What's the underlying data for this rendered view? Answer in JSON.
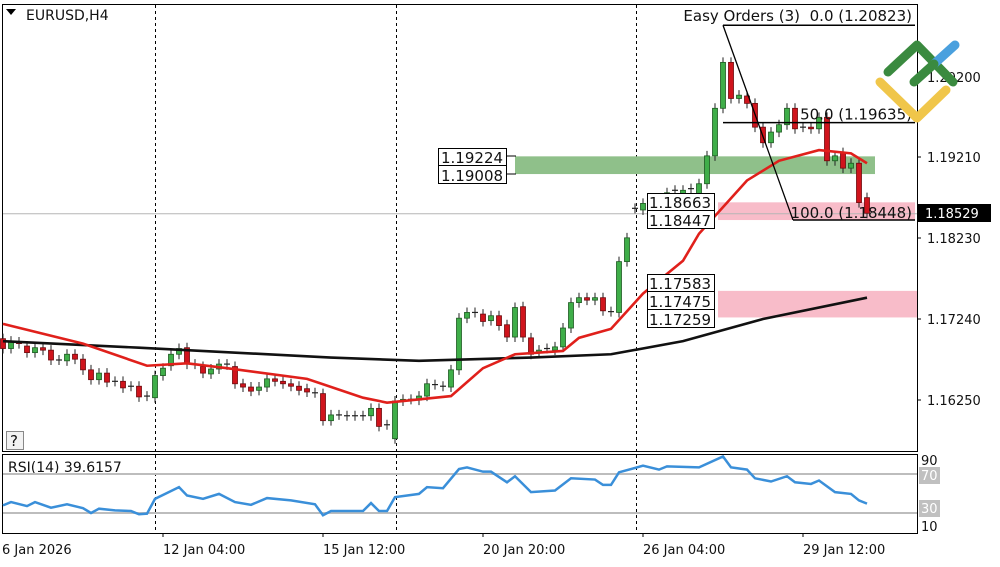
{
  "header": {
    "symbol": "EURUSD,H4",
    "menu_icon": "triangle-down-icon"
  },
  "help_button": "?",
  "indicator_label": "Easy Orders (3)",
  "price_axis": {
    "labels": [
      "1.20200",
      "1.19210",
      "1.18230",
      "1.17240",
      "1.16250"
    ],
    "current_price": "1.18529"
  },
  "zones": {
    "resistance": {
      "labels": [
        "1.19224",
        "1.19008"
      ],
      "color": "#8fc08a"
    },
    "support_upper": {
      "labels": [
        "1.18663",
        "1.18447"
      ],
      "color": "#f8bcc9"
    },
    "support_lower": {
      "labels": [
        "1.17583",
        "1.17475",
        "1.17259"
      ],
      "color": "#f8bcc9"
    }
  },
  "fibonacci": {
    "levels": [
      {
        "label": "0.0 (1.20823)",
        "price": 1.20823
      },
      {
        "label": "50.0 (1.19635)",
        "price": 1.19635
      },
      {
        "label": "100.0 (1.18448)",
        "price": 1.18448
      }
    ]
  },
  "rsi": {
    "label": "RSI(14) 39.6157",
    "levels": [
      "90",
      "70",
      "30",
      "10"
    ],
    "color": "#3a8fd9"
  },
  "time_axis": {
    "labels": [
      "6 Jan 2026",
      "12 Jan 04:00",
      "15 Jan 12:00",
      "20 Jan 20:00",
      "26 Jan 04:00",
      "29 Jan 12:00"
    ]
  },
  "logo": {
    "colors": [
      "#3a8a3f",
      "#4aa0de",
      "#f0c64a"
    ]
  },
  "chart_data": {
    "type": "candlestick",
    "symbol": "EURUSD",
    "timeframe": "H4",
    "ylim": [
      1.1563,
      1.2107
    ],
    "colors": {
      "up": "#3fae49",
      "down": "#d0141c",
      "ma_fast": "#e0201b",
      "ma_slow": "#111111"
    },
    "open": [
      1.17,
      1.1688,
      1.1696,
      1.1691,
      1.1683,
      1.1689,
      1.1686,
      1.1674,
      1.1673,
      1.1681,
      1.1675,
      1.1662,
      1.165,
      1.1658,
      1.1648,
      1.1648,
      1.1642,
      1.1642,
      1.163,
      1.1628,
      1.1655,
      1.1667,
      1.1681,
      1.1689,
      1.1669,
      1.1666,
      1.1657,
      1.1663,
      1.1669,
      1.1666,
      1.1645,
      1.1641,
      1.1637,
      1.1641,
      1.1651,
      1.1648,
      1.1645,
      1.1642,
      1.1639,
      1.1634,
      1.1633,
      1.16,
      1.1607,
      1.1606,
      1.1606,
      1.1606,
      1.1606,
      1.1615,
      1.1595,
      1.1578,
      1.1624,
      1.1626,
      1.1625,
      1.163,
      1.1644,
      1.1642,
      1.1641,
      1.1662,
      1.1725,
      1.1732,
      1.173,
      1.1722,
      1.1728,
      1.1717,
      1.1702,
      1.1739,
      1.1701,
      1.1683,
      1.1688,
      1.1686,
      1.169,
      1.1713,
      1.1744,
      1.175,
      1.1747,
      1.175,
      1.1733,
      1.1732,
      1.1794,
      1.1859,
      1.1857,
      1.1862,
      1.1865,
      1.1856,
      1.1881,
      1.1877,
      1.1883,
      1.1877,
      1.1889,
      1.1923,
      1.1981,
      1.2037,
      1.1993,
      1.1996,
      1.1987,
      1.1958,
      1.1939,
      1.1952,
      1.1961,
      1.1981,
      1.1958,
      1.1958,
      1.1956,
      1.197,
      1.1917,
      1.1927,
      1.1908,
      1.1914,
      1.1872
    ],
    "close": [
      1.1688,
      1.1697,
      1.1694,
      1.1683,
      1.1689,
      1.1686,
      1.1674,
      1.1674,
      1.1681,
      1.1675,
      1.1662,
      1.165,
      1.1658,
      1.1647,
      1.1648,
      1.164,
      1.1642,
      1.1629,
      1.163,
      1.1655,
      1.1664,
      1.1681,
      1.1688,
      1.1669,
      1.1669,
      1.1658,
      1.1663,
      1.1669,
      1.1668,
      1.1645,
      1.1641,
      1.1636,
      1.1641,
      1.1651,
      1.1648,
      1.1645,
      1.1642,
      1.1637,
      1.1635,
      1.1634,
      1.16,
      1.1607,
      1.1607,
      1.1606,
      1.1606,
      1.1606,
      1.1615,
      1.1593,
      1.1595,
      1.1624,
      1.1626,
      1.1626,
      1.163,
      1.1645,
      1.1644,
      1.1642,
      1.1662,
      1.1725,
      1.1732,
      1.1732,
      1.1721,
      1.1728,
      1.1716,
      1.1702,
      1.1738,
      1.1702,
      1.1681,
      1.1686,
      1.1688,
      1.169,
      1.1713,
      1.1744,
      1.175,
      1.1747,
      1.175,
      1.1734,
      1.1733,
      1.1794,
      1.1823,
      1.1859,
      1.1865,
      1.1862,
      1.1856,
      1.1878,
      1.1881,
      1.1881,
      1.1883,
      1.1889,
      1.1923,
      1.1981,
      1.2037,
      1.1993,
      1.1997,
      1.1987,
      1.1958,
      1.1939,
      1.1952,
      1.1961,
      1.1981,
      1.1956,
      1.1958,
      1.1956,
      1.197,
      1.1917,
      1.1923,
      1.1908,
      1.1914,
      1.1866,
      1.1853
    ],
    "ma_fast": [
      [
        0,
        1.1718
      ],
      [
        10,
        1.1694
      ],
      [
        18,
        1.1667
      ],
      [
        23,
        1.167
      ],
      [
        28,
        1.1664
      ],
      [
        38,
        1.1651
      ],
      [
        45,
        1.1628
      ],
      [
        48,
        1.1622
      ],
      [
        56,
        1.163
      ],
      [
        60,
        1.1664
      ],
      [
        64,
        1.1681
      ],
      [
        70,
        1.1685
      ],
      [
        72,
        1.1701
      ],
      [
        76,
        1.1712
      ],
      [
        80,
        1.1755
      ],
      [
        85,
        1.1795
      ],
      [
        87,
        1.1828
      ],
      [
        93,
        1.1893
      ],
      [
        97,
        1.1917
      ],
      [
        102,
        1.193
      ],
      [
        106,
        1.1926
      ],
      [
        108,
        1.1914
      ]
    ],
    "ma_slow": [
      [
        0,
        1.1697
      ],
      [
        17,
        1.1689
      ],
      [
        41,
        1.1677
      ],
      [
        52,
        1.1673
      ],
      [
        66,
        1.1677
      ],
      [
        76,
        1.1681
      ],
      [
        85,
        1.1697
      ],
      [
        95,
        1.1724
      ],
      [
        108,
        1.175
      ]
    ],
    "rsi_values": [
      [
        0,
        37.8
      ],
      [
        1,
        41.2
      ],
      [
        3,
        37.1
      ],
      [
        4,
        41.2
      ],
      [
        6,
        35.4
      ],
      [
        8,
        38.9
      ],
      [
        10,
        35
      ],
      [
        11,
        30
      ],
      [
        12,
        34.4
      ],
      [
        14,
        32.7
      ],
      [
        16,
        32
      ],
      [
        17,
        28.7
      ],
      [
        18,
        29.3
      ],
      [
        19,
        44.5
      ],
      [
        22,
        56.5
      ],
      [
        23,
        48
      ],
      [
        25,
        44.5
      ],
      [
        27,
        49.6
      ],
      [
        29,
        41.2
      ],
      [
        31,
        38.4
      ],
      [
        33,
        45.3
      ],
      [
        36,
        42.9
      ],
      [
        39,
        38.9
      ],
      [
        40,
        27.7
      ],
      [
        41,
        32
      ],
      [
        45,
        32
      ],
      [
        46,
        40.2
      ],
      [
        47,
        32
      ],
      [
        48,
        32
      ],
      [
        49,
        46.3
      ],
      [
        52,
        49.6
      ],
      [
        53,
        56.5
      ],
      [
        55,
        55.4
      ],
      [
        57,
        75.1
      ],
      [
        58,
        76.8
      ],
      [
        60,
        72.4
      ],
      [
        61,
        72.4
      ],
      [
        63,
        61.5
      ],
      [
        64,
        67.7
      ],
      [
        66,
        51.4
      ],
      [
        69,
        53.1
      ],
      [
        71,
        65.6
      ],
      [
        74,
        64.3
      ],
      [
        75,
        58.8
      ],
      [
        76,
        58.8
      ],
      [
        77,
        71.7
      ],
      [
        80,
        78.5
      ],
      [
        82,
        74.5
      ],
      [
        83,
        77.8
      ],
      [
        87,
        76.8
      ],
      [
        90,
        88
      ],
      [
        91,
        76.8
      ],
      [
        93,
        74.5
      ],
      [
        94,
        65.6
      ],
      [
        96,
        62.3
      ],
      [
        98,
        67.7
      ],
      [
        99,
        61.5
      ],
      [
        101,
        59.8
      ],
      [
        102,
        63.3
      ],
      [
        104,
        51.4
      ],
      [
        106,
        49.6
      ],
      [
        107,
        42.9
      ],
      [
        108,
        39.6
      ]
    ],
    "rsi_ylim": [
      10,
      90
    ]
  }
}
